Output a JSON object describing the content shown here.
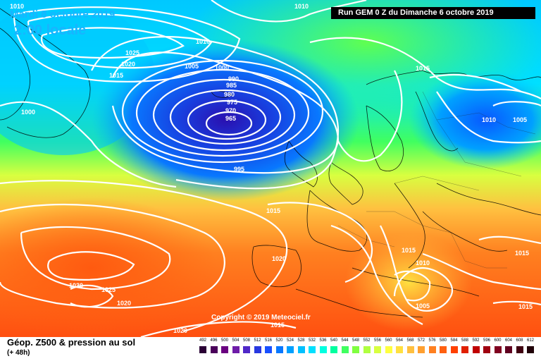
{
  "header": {
    "date": "Mardi 8 octobre 2019",
    "time": "2:00 locale",
    "run": "Run GEM 0 Z du Dimanche 6 octobre 2019"
  },
  "copyright": "Copyright © 2019 Meteociel.fr",
  "footer": {
    "title": "Géop. Z500 & pression au sol",
    "subtitle": "(+ 48h)"
  },
  "scale": {
    "labels": [
      "492",
      "496",
      "500",
      "504",
      "508",
      "512",
      "516",
      "520",
      "524",
      "528",
      "532",
      "536",
      "540",
      "544",
      "548",
      "552",
      "556",
      "560",
      "564",
      "568",
      "572",
      "576",
      "580",
      "584",
      "588",
      "592",
      "596",
      "600",
      "604",
      "608",
      "612"
    ],
    "colors": [
      "#2a0035",
      "#4a005a",
      "#6a0080",
      "#6e1ca8",
      "#5028c8",
      "#2838e0",
      "#1850ff",
      "#0878ff",
      "#00a0ff",
      "#00c0ff",
      "#00e0ff",
      "#00ffe0",
      "#00ffa0",
      "#40ff60",
      "#80ff40",
      "#b0ff40",
      "#d8ff40",
      "#ffff40",
      "#ffe040",
      "#ffc040",
      "#ffa030",
      "#ff8020",
      "#ff6010",
      "#ff4000",
      "#e02000",
      "#c00000",
      "#a00010",
      "#800020",
      "#600020",
      "#400010",
      "#200008"
    ]
  },
  "isobar_labels": [
    {
      "id": "p1010-tl",
      "text": "1010"
    },
    {
      "id": "p1010-tc",
      "text": "1010"
    },
    {
      "id": "p1010-g",
      "text": "1010"
    },
    {
      "id": "p1025-g",
      "text": "1025"
    },
    {
      "id": "p1020-g",
      "text": "1020"
    },
    {
      "id": "p1015-g",
      "text": "1015"
    },
    {
      "id": "p1005-g",
      "text": "1005"
    },
    {
      "id": "p1000-g",
      "text": "1000"
    },
    {
      "id": "p1000-l",
      "text": "1000"
    },
    {
      "id": "p990",
      "text": "990"
    },
    {
      "id": "p985",
      "text": "985"
    },
    {
      "id": "p980",
      "text": "980"
    },
    {
      "id": "p975",
      "text": "975"
    },
    {
      "id": "p970",
      "text": "970"
    },
    {
      "id": "p965",
      "text": "965"
    },
    {
      "id": "p995",
      "text": "995"
    },
    {
      "id": "p1015-s",
      "text": "1015"
    },
    {
      "id": "p1010-e",
      "text": "1010"
    },
    {
      "id": "p1005-e",
      "text": "1005"
    },
    {
      "id": "p1015-c",
      "text": "1015"
    },
    {
      "id": "p1020-p",
      "text": "1020"
    },
    {
      "id": "p1015-it",
      "text": "1015"
    },
    {
      "id": "p1010-it",
      "text": "1010"
    },
    {
      "id": "p1005-it",
      "text": "1005"
    },
    {
      "id": "p1015-gr",
      "text": "1015"
    },
    {
      "id": "p1015-tr",
      "text": "1015"
    },
    {
      "id": "p1030-az",
      "text": "1030"
    },
    {
      "id": "p1025-az",
      "text": "1025"
    },
    {
      "id": "p1020-az",
      "text": "1020"
    },
    {
      "id": "p1020-b",
      "text": "1020"
    },
    {
      "id": "p1015-b",
      "text": "1015"
    }
  ]
}
